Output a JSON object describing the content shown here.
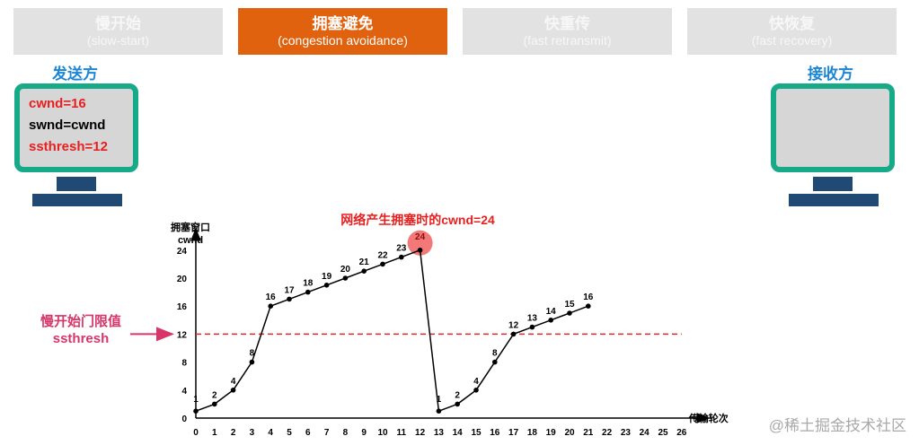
{
  "phases": [
    {
      "title": "慢开始",
      "subtitle": "(slow-start)",
      "active": false
    },
    {
      "title": "拥塞避免",
      "subtitle": "(congestion avoidance)",
      "active": true
    },
    {
      "title": "快重传",
      "subtitle": "(fast retransmit)",
      "active": false
    },
    {
      "title": "快恢复",
      "subtitle": "(fast recovery)",
      "active": false
    }
  ],
  "sender": {
    "label": "发送方",
    "lines": [
      "cwnd=16",
      "swnd=cwnd",
      "ssthresh=12"
    ]
  },
  "receiver": {
    "label": "接收方"
  },
  "annotations": {
    "congestion_note": "网络产生拥塞时的cwnd=24",
    "threshold_label_cn": "慢开始门限值",
    "threshold_label_en": "ssthresh"
  },
  "colors": {
    "active_tab": "#e0620e",
    "inactive_tab": "#e2e2e2",
    "monitor_frame": "#16aa89",
    "monitor_stand": "#204a73",
    "red_text": "#e81f1f",
    "threshold_line": "#e02a2a",
    "threshold_label": "#d6366a",
    "highlight_circle": "#f26a6a"
  },
  "chart_data": {
    "type": "line",
    "ylabel": "拥塞窗口\ncwnd",
    "xlabel": "传输轮次",
    "x_ticks": [
      0,
      1,
      2,
      3,
      4,
      5,
      6,
      7,
      8,
      9,
      10,
      11,
      12,
      13,
      14,
      15,
      16,
      17,
      18,
      19,
      20,
      21,
      22,
      23,
      24,
      25,
      26
    ],
    "y_ticks": [
      0,
      4,
      8,
      12,
      16,
      20,
      24
    ],
    "xlim": [
      0,
      26
    ],
    "ylim": [
      0,
      26
    ],
    "threshold": 12,
    "highlight_point": {
      "x": 12,
      "y": 24
    },
    "series": [
      {
        "x": [
          0,
          1,
          2,
          3,
          4,
          5,
          6,
          7,
          8,
          9,
          10,
          11,
          12,
          13,
          14,
          15,
          16,
          17,
          18,
          19,
          20,
          21
        ],
        "y": [
          1,
          2,
          4,
          8,
          16,
          17,
          18,
          19,
          20,
          21,
          22,
          23,
          24,
          1,
          2,
          4,
          8,
          12,
          13,
          14,
          15,
          16
        ]
      }
    ]
  },
  "watermark": "@稀土掘金技术社区"
}
